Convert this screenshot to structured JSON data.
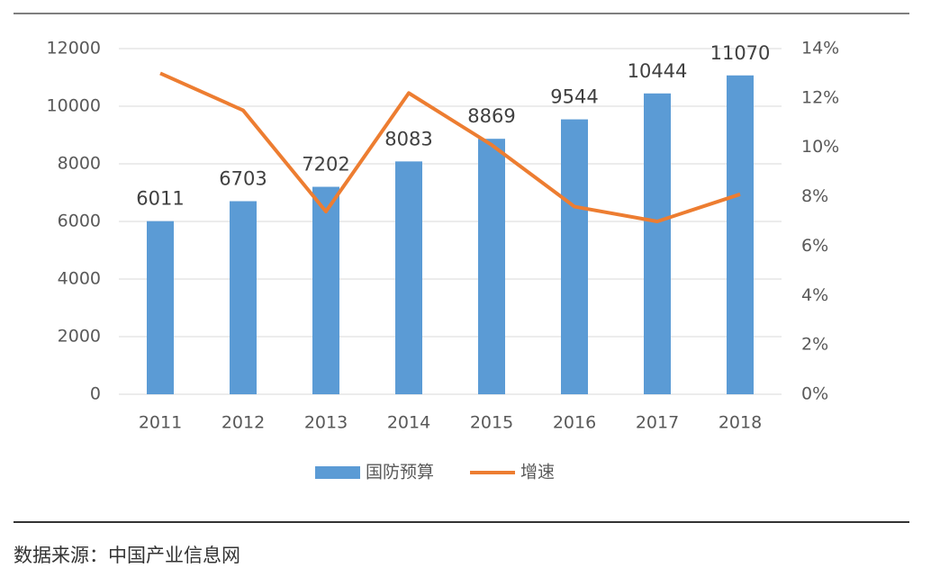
{
  "chart_data": {
    "type": "bar",
    "categories": [
      "2011",
      "2012",
      "2013",
      "2014",
      "2015",
      "2016",
      "2017",
      "2018"
    ],
    "series": [
      {
        "name": "国防预算",
        "type": "bar",
        "color": "#5b9bd5",
        "values": [
          6011,
          6703,
          7202,
          8083,
          8869,
          9544,
          10444,
          11070
        ]
      },
      {
        "name": "增速",
        "type": "line",
        "color": "#ed7d31",
        "axis": "y2",
        "values": [
          13.0,
          11.5,
          7.4,
          12.2,
          10.1,
          7.6,
          7.0,
          8.1
        ]
      }
    ],
    "ylim": [
      0,
      12000
    ],
    "yticks": [
      0,
      2000,
      4000,
      6000,
      8000,
      10000,
      12000
    ],
    "y2lim": [
      0,
      14
    ],
    "y2ticks": [
      {
        "value": 0,
        "label": "0%"
      },
      {
        "value": 2,
        "label": "2%"
      },
      {
        "value": 4,
        "label": "4%"
      },
      {
        "value": 6,
        "label": "6%"
      },
      {
        "value": 8,
        "label": "8%"
      },
      {
        "value": 10,
        "label": "10%"
      },
      {
        "value": 12,
        "label": "12%"
      },
      {
        "value": 14,
        "label": "14%"
      }
    ],
    "grid": true,
    "legend": "bottom",
    "source": "数据来源：中国产业信息网"
  }
}
